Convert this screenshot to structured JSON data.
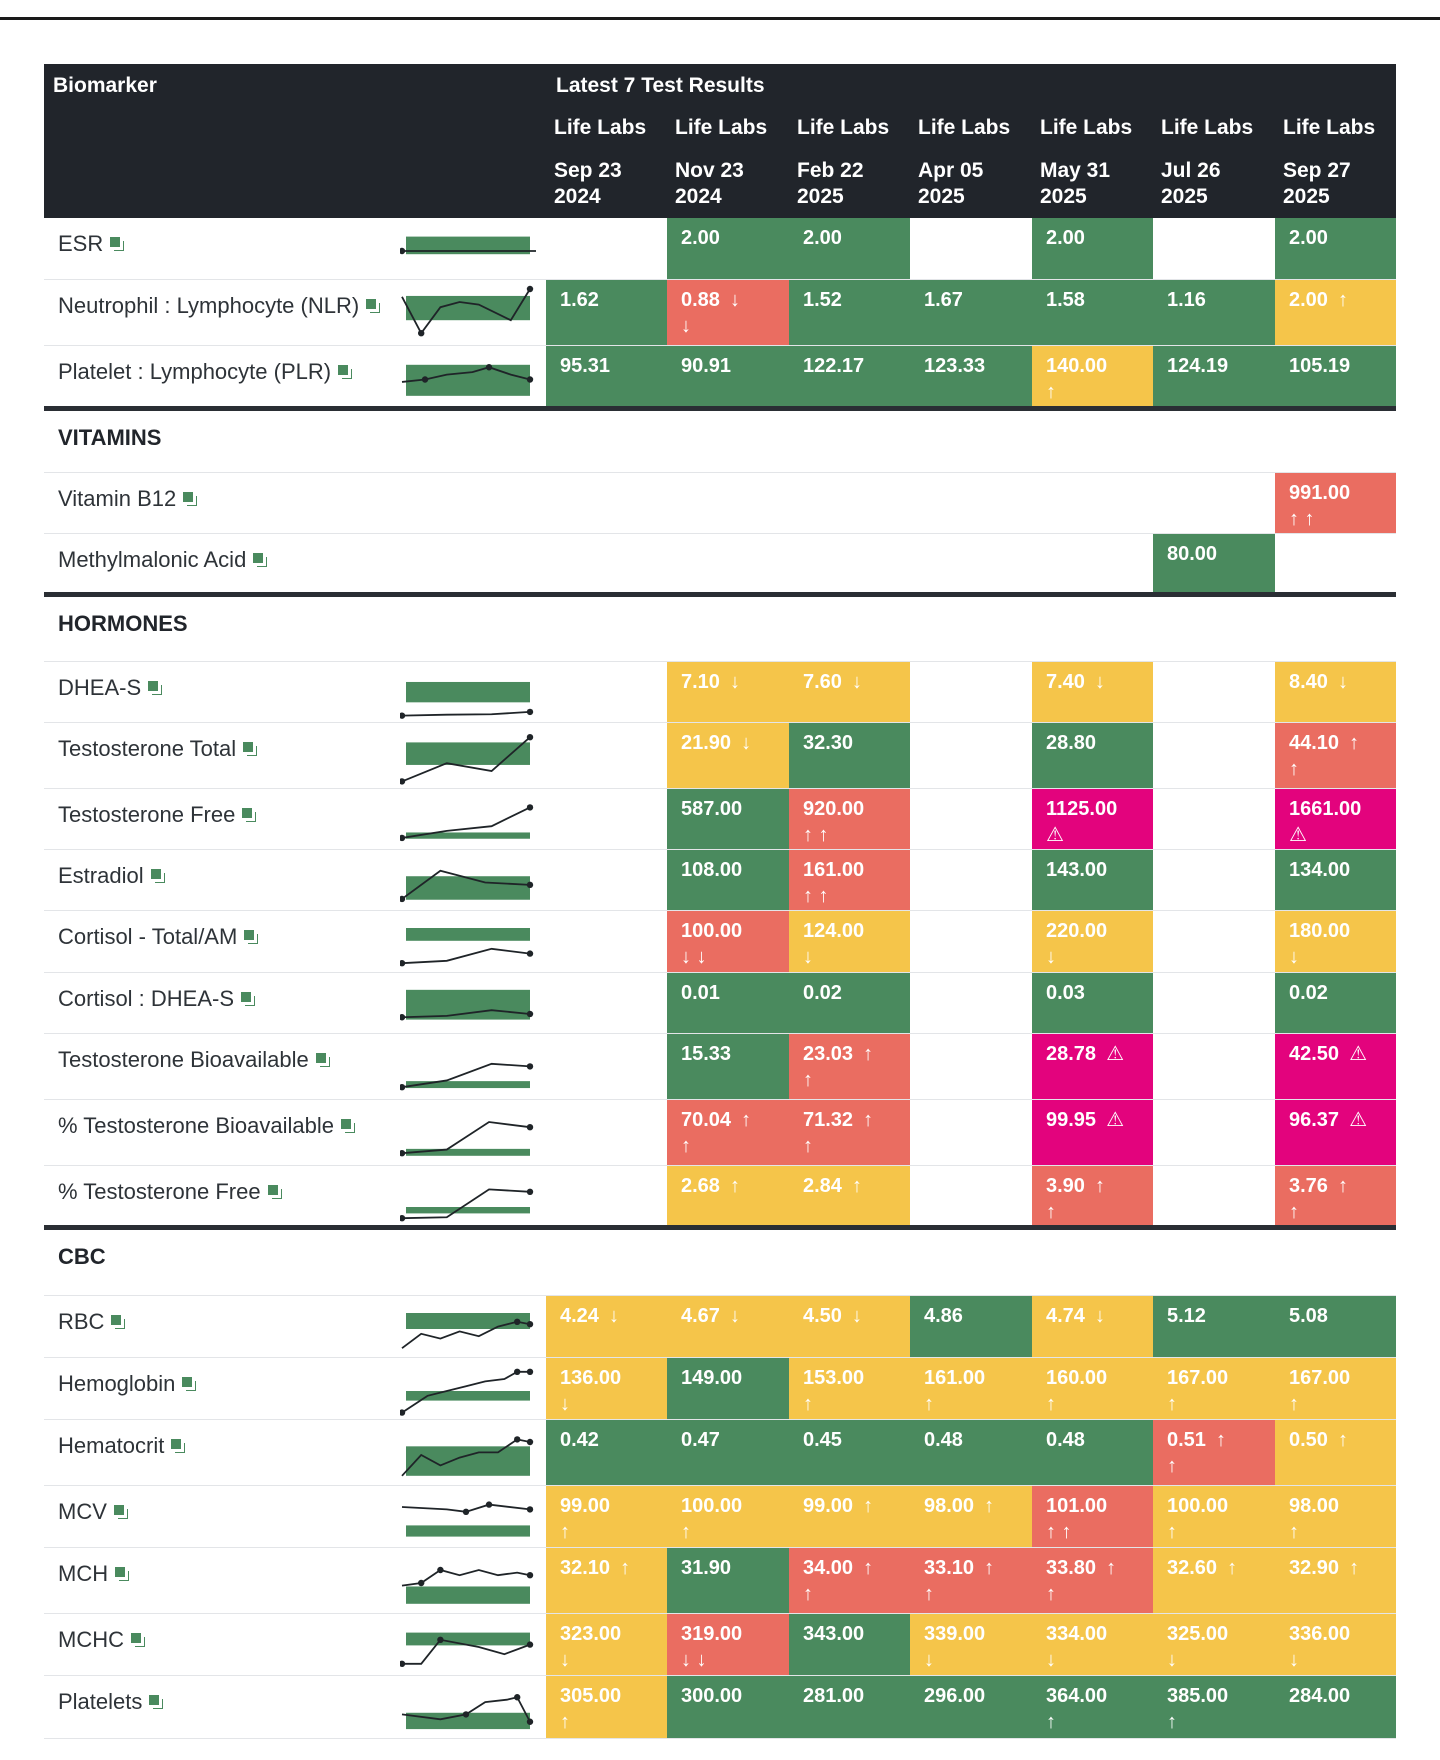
{
  "header": {
    "biomarker_label": "Biomarker",
    "results_label": "Latest 7 Test Results",
    "columns": [
      {
        "lab": "Life Labs",
        "date_line1": "Sep 23",
        "date_line2": "2024"
      },
      {
        "lab": "Life Labs",
        "date_line1": "Nov 23",
        "date_line2": "2024"
      },
      {
        "lab": "Life Labs",
        "date_line1": "Feb 22",
        "date_line2": "2025"
      },
      {
        "lab": "Life Labs",
        "date_line1": "Apr 05",
        "date_line2": "2025"
      },
      {
        "lab": "Life Labs",
        "date_line1": "May 31",
        "date_line2": "2025"
      },
      {
        "lab": "Life Labs",
        "date_line1": "Jul 26",
        "date_line2": "2025"
      },
      {
        "lab": "Life Labs",
        "date_line1": "Sep 27",
        "date_line2": "2025"
      }
    ]
  },
  "colors": {
    "green": "#4a8a5e",
    "yellow": "#f5c54a",
    "red": "#ea6d61",
    "magenta": "#e3037d",
    "header_bg": "#21252b"
  },
  "sections": [
    {
      "title": "",
      "rows": [
        {
          "name": "ESR",
          "spark": true,
          "cells": [
            null,
            {
              "v": "2.00",
              "c": "green"
            },
            {
              "v": "2.00",
              "c": "green"
            },
            null,
            {
              "v": "2.00",
              "c": "green"
            },
            null,
            {
              "v": "2.00",
              "c": "green"
            }
          ]
        },
        {
          "name": "Neutrophil : Lymphocyte (NLR)",
          "spark": true,
          "cells": [
            {
              "v": "1.62",
              "c": "green"
            },
            {
              "v": "0.88",
              "c": "red",
              "a": "↓",
              "a2": "↓"
            },
            {
              "v": "1.52",
              "c": "green"
            },
            {
              "v": "1.67",
              "c": "green"
            },
            {
              "v": "1.58",
              "c": "green"
            },
            {
              "v": "1.16",
              "c": "green"
            },
            {
              "v": "2.00",
              "c": "yellow",
              "a": "↑"
            }
          ]
        },
        {
          "name": "Platelet : Lymphocyte (PLR)",
          "spark": true,
          "cells": [
            {
              "v": "95.31",
              "c": "green"
            },
            {
              "v": "90.91",
              "c": "green"
            },
            {
              "v": "122.17",
              "c": "green"
            },
            {
              "v": "123.33",
              "c": "green"
            },
            {
              "v": "140.00",
              "c": "yellow",
              "a2": "↑"
            },
            {
              "v": "124.19",
              "c": "green"
            },
            {
              "v": "105.19",
              "c": "green"
            }
          ]
        }
      ]
    },
    {
      "title": "VITAMINS",
      "rows": [
        {
          "name": "Vitamin B12",
          "spark": false,
          "cells": [
            null,
            null,
            null,
            null,
            null,
            null,
            {
              "v": "991.00",
              "c": "red",
              "a2": "↑ ↑"
            }
          ]
        },
        {
          "name": "Methylmalonic Acid",
          "spark": false,
          "cells": [
            null,
            null,
            null,
            null,
            null,
            {
              "v": "80.00",
              "c": "green"
            },
            null
          ]
        }
      ]
    },
    {
      "title": "HORMONES",
      "rows": [
        {
          "name": "DHEA-S",
          "spark": true,
          "cells": [
            null,
            {
              "v": "7.10",
              "c": "yellow",
              "a": "↓"
            },
            {
              "v": "7.60",
              "c": "yellow",
              "a": "↓"
            },
            null,
            {
              "v": "7.40",
              "c": "yellow",
              "a": "↓"
            },
            null,
            {
              "v": "8.40",
              "c": "yellow",
              "a": "↓"
            }
          ]
        },
        {
          "name": "Testosterone Total",
          "spark": true,
          "cells": [
            null,
            {
              "v": "21.90",
              "c": "yellow",
              "a": "↓"
            },
            {
              "v": "32.30",
              "c": "green"
            },
            null,
            {
              "v": "28.80",
              "c": "green"
            },
            null,
            {
              "v": "44.10",
              "c": "red",
              "a": "↑",
              "a2": "↑"
            }
          ]
        },
        {
          "name": "Testosterone Free",
          "spark": true,
          "cells": [
            null,
            {
              "v": "587.00",
              "c": "green"
            },
            {
              "v": "920.00",
              "c": "red",
              "a2": "↑ ↑"
            },
            null,
            {
              "v": "1125.00",
              "c": "magenta",
              "a2": "⚠"
            },
            null,
            {
              "v": "1661.00",
              "c": "magenta",
              "a2": "⚠"
            }
          ]
        },
        {
          "name": "Estradiol",
          "spark": true,
          "cells": [
            null,
            {
              "v": "108.00",
              "c": "green"
            },
            {
              "v": "161.00",
              "c": "red",
              "a2": "↑ ↑"
            },
            null,
            {
              "v": "143.00",
              "c": "green"
            },
            null,
            {
              "v": "134.00",
              "c": "green"
            }
          ]
        },
        {
          "name": "Cortisol - Total/AM",
          "spark": true,
          "cells": [
            null,
            {
              "v": "100.00",
              "c": "red",
              "a2": "↓ ↓"
            },
            {
              "v": "124.00",
              "c": "yellow",
              "a2": "↓"
            },
            null,
            {
              "v": "220.00",
              "c": "yellow",
              "a2": "↓"
            },
            null,
            {
              "v": "180.00",
              "c": "yellow",
              "a2": "↓"
            }
          ]
        },
        {
          "name": "Cortisol : DHEA-S",
          "spark": true,
          "cells": [
            null,
            {
              "v": "0.01",
              "c": "green"
            },
            {
              "v": "0.02",
              "c": "green"
            },
            null,
            {
              "v": "0.03",
              "c": "green"
            },
            null,
            {
              "v": "0.02",
              "c": "green"
            }
          ]
        },
        {
          "name": "Testosterone Bioavailable",
          "spark": true,
          "cells": [
            null,
            {
              "v": "15.33",
              "c": "green"
            },
            {
              "v": "23.03",
              "c": "red",
              "a": "↑",
              "a2": "↑"
            },
            null,
            {
              "v": "28.78",
              "c": "magenta",
              "a": "⚠"
            },
            null,
            {
              "v": "42.50",
              "c": "magenta",
              "a": "⚠"
            }
          ]
        },
        {
          "name": "% Testosterone Bioavailable",
          "spark": true,
          "cells": [
            null,
            {
              "v": "70.04",
              "c": "red",
              "a": "↑",
              "a2": "↑"
            },
            {
              "v": "71.32",
              "c": "red",
              "a": "↑",
              "a2": "↑"
            },
            null,
            {
              "v": "99.95",
              "c": "magenta",
              "a": "⚠"
            },
            null,
            {
              "v": "96.37",
              "c": "magenta",
              "a": "⚠"
            }
          ]
        },
        {
          "name": "% Testosterone Free",
          "spark": true,
          "cells": [
            null,
            {
              "v": "2.68",
              "c": "yellow",
              "a": "↑"
            },
            {
              "v": "2.84",
              "c": "yellow",
              "a": "↑"
            },
            null,
            {
              "v": "3.90",
              "c": "red",
              "a": "↑",
              "a2": "↑"
            },
            null,
            {
              "v": "3.76",
              "c": "red",
              "a": "↑",
              "a2": "↑"
            }
          ]
        }
      ]
    },
    {
      "title": "CBC",
      "rows": [
        {
          "name": "RBC",
          "spark": true,
          "cells": [
            {
              "v": "4.24",
              "c": "yellow",
              "a": "↓"
            },
            {
              "v": "4.67",
              "c": "yellow",
              "a": "↓"
            },
            {
              "v": "4.50",
              "c": "yellow",
              "a": "↓"
            },
            {
              "v": "4.86",
              "c": "green"
            },
            {
              "v": "4.74",
              "c": "yellow",
              "a": "↓"
            },
            {
              "v": "5.12",
              "c": "green"
            },
            {
              "v": "5.08",
              "c": "green"
            }
          ]
        },
        {
          "name": "Hemoglobin",
          "spark": true,
          "cells": [
            {
              "v": "136.00",
              "c": "yellow",
              "a2": "↓"
            },
            {
              "v": "149.00",
              "c": "green"
            },
            {
              "v": "153.00",
              "c": "yellow",
              "a2": "↑"
            },
            {
              "v": "161.00",
              "c": "yellow",
              "a2": "↑"
            },
            {
              "v": "160.00",
              "c": "yellow",
              "a2": "↑"
            },
            {
              "v": "167.00",
              "c": "yellow",
              "a2": "↑"
            },
            {
              "v": "167.00",
              "c": "yellow",
              "a2": "↑"
            }
          ]
        },
        {
          "name": "Hematocrit",
          "spark": true,
          "cells": [
            {
              "v": "0.42",
              "c": "green"
            },
            {
              "v": "0.47",
              "c": "green"
            },
            {
              "v": "0.45",
              "c": "green"
            },
            {
              "v": "0.48",
              "c": "green"
            },
            {
              "v": "0.48",
              "c": "green"
            },
            {
              "v": "0.51",
              "c": "red",
              "a": "↑",
              "a2": "↑"
            },
            {
              "v": "0.50",
              "c": "yellow",
              "a": "↑"
            }
          ]
        },
        {
          "name": "MCV",
          "spark": true,
          "cells": [
            {
              "v": "99.00",
              "c": "yellow",
              "a2": "↑"
            },
            {
              "v": "100.00",
              "c": "yellow",
              "a2": "↑"
            },
            {
              "v": "99.00",
              "c": "yellow",
              "a": "↑"
            },
            {
              "v": "98.00",
              "c": "yellow",
              "a": "↑"
            },
            {
              "v": "101.00",
              "c": "red",
              "a2": "↑ ↑"
            },
            {
              "v": "100.00",
              "c": "yellow",
              "a2": "↑"
            },
            {
              "v": "98.00",
              "c": "yellow",
              "a2": "↑"
            }
          ]
        },
        {
          "name": "MCH",
          "spark": true,
          "cells": [
            {
              "v": "32.10",
              "c": "yellow",
              "a": "↑"
            },
            {
              "v": "31.90",
              "c": "green"
            },
            {
              "v": "34.00",
              "c": "red",
              "a": "↑",
              "a2": "↑"
            },
            {
              "v": "33.10",
              "c": "red",
              "a": "↑",
              "a2": "↑"
            },
            {
              "v": "33.80",
              "c": "red",
              "a": "↑",
              "a2": "↑"
            },
            {
              "v": "32.60",
              "c": "yellow",
              "a": "↑"
            },
            {
              "v": "32.90",
              "c": "yellow",
              "a": "↑"
            }
          ]
        },
        {
          "name": "MCHC",
          "spark": true,
          "cells": [
            {
              "v": "323.00",
              "c": "yellow",
              "a2": "↓"
            },
            {
              "v": "319.00",
              "c": "red",
              "a2": "↓ ↓"
            },
            {
              "v": "343.00",
              "c": "green"
            },
            {
              "v": "339.00",
              "c": "yellow",
              "a2": "↓"
            },
            {
              "v": "334.00",
              "c": "yellow",
              "a2": "↓"
            },
            {
              "v": "325.00",
              "c": "yellow",
              "a2": "↓"
            },
            {
              "v": "336.00",
              "c": "yellow",
              "a2": "↓"
            }
          ]
        },
        {
          "name": "Platelets",
          "spark": true,
          "cells": [
            {
              "v": "305.00",
              "c": "yellow",
              "a2": "↑"
            },
            {
              "v": "300.00",
              "c": "green"
            },
            {
              "v": "281.00",
              "c": "green"
            },
            {
              "v": "296.00",
              "c": "green"
            },
            {
              "v": "364.00",
              "c": "green",
              "a2": "↑"
            },
            {
              "v": "385.00",
              "c": "green",
              "a2": "↑"
            },
            {
              "v": "284.00",
              "c": "green"
            }
          ]
        }
      ]
    }
  ]
}
